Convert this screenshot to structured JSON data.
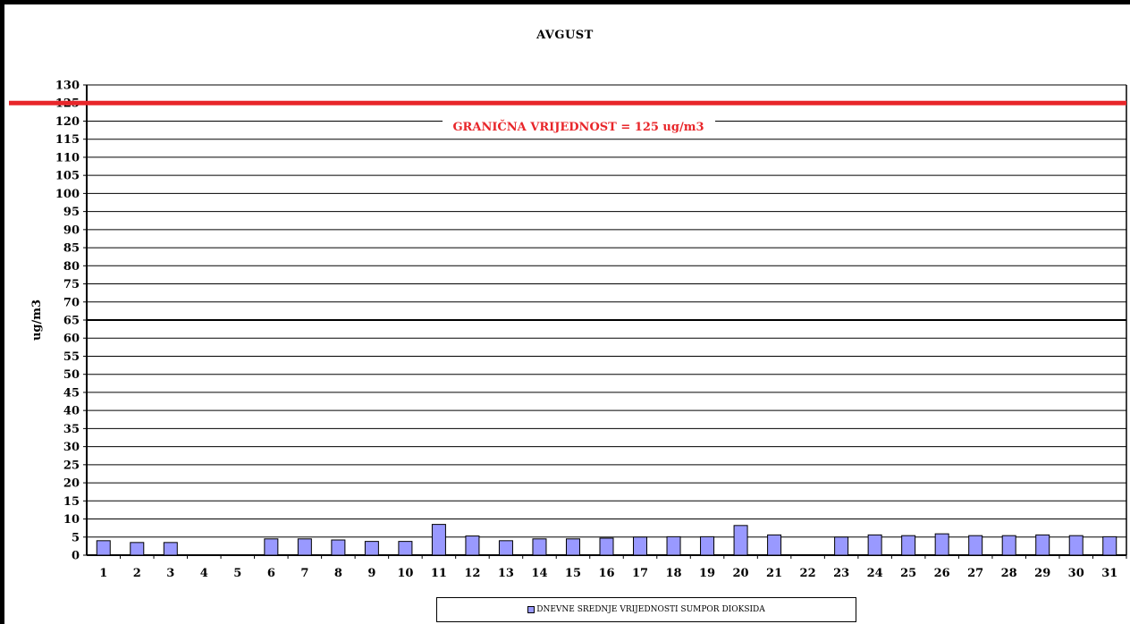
{
  "chart_data": {
    "type": "bar",
    "title": "AVGUST",
    "ylabel": "ug/m3",
    "xlabel": "",
    "ylim": [
      0,
      130
    ],
    "ytick_step": 5,
    "grid": true,
    "legend_placement": "bottom",
    "categories": [
      "1",
      "2",
      "3",
      "4",
      "5",
      "6",
      "7",
      "8",
      "9",
      "10",
      "11",
      "12",
      "13",
      "14",
      "15",
      "16",
      "17",
      "18",
      "19",
      "20",
      "21",
      "22",
      "23",
      "24",
      "25",
      "26",
      "27",
      "28",
      "29",
      "30",
      "31"
    ],
    "series": [
      {
        "name": "DNEVNE SREDNJE VRIJEDNOSTI SUMPOR DIOKSIDA",
        "color": "#9999ff",
        "values": [
          4,
          3.5,
          3.5,
          0,
          0,
          4.5,
          4.5,
          4.2,
          3.8,
          3.8,
          8.5,
          5.3,
          4,
          4.5,
          4.5,
          4.7,
          5,
          5.1,
          5.1,
          8.2,
          5.6,
          0,
          5,
          5.6,
          5.4,
          5.9,
          5.4,
          5.4,
          5.6,
          5.4,
          5.1
        ]
      }
    ],
    "threshold": {
      "value": 125,
      "label": "GRANIČNA VRIJEDNOST = 125 ug/m3",
      "color": "#e8262a"
    }
  }
}
